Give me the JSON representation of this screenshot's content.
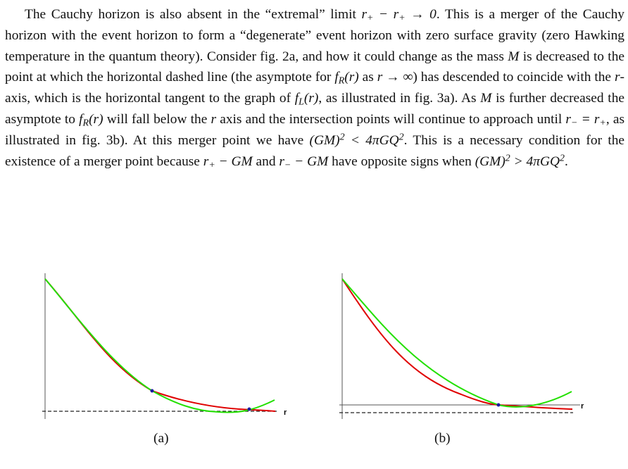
{
  "paragraph": {
    "s1": "The Cauchy horizon is also absent in the “extremal” limit ",
    "s2": ". This is a merger of the Cauchy horizon with the event horizon to form a “degenerate” event horizon with zero surface gravity (zero Hawking temperature in the quantum theory). Consider fig. 2a, and how it could change as the mass ",
    "s3": " is decreased to the point at which the horizontal dashed line (the asymptote for ",
    "s4": " as ",
    "s5": ") has descended to coincide with the ",
    "s6": "-axis, which is the horizontal tangent to the graph of ",
    "s7": ", as illustrated in fig. 3a). As ",
    "s8": " is further decreased the asymptote to ",
    "s9": " will fall below the ",
    "s10": " axis and the intersection points will continue to approach until ",
    "s11": ", as illustrated in fig. 3b). At this merger point we have ",
    "s12": ". This is a necessary condition for the existence of a merger point because ",
    "s13": " and ",
    "s14": " have opposite signs when ",
    "s15": "."
  },
  "math": {
    "extremal_limit": "r₊ − r₊ → 0",
    "mass": "M",
    "fR": "f_R(r)",
    "r_to_inf": "r → ∞",
    "r": "r",
    "fL": "f_L(r)",
    "merge": "r₋ = r₊",
    "cond_lt": "(GM)² < 4πGQ²",
    "rplus_gm": "r₊ − GM",
    "rminus_gm": "r₋ − GM",
    "cond_gt": "(GM)² > 4πGQ²"
  },
  "figures": {
    "a": {
      "caption": "(a)",
      "axis_label": "r"
    },
    "b": {
      "caption": "(b)",
      "axis_label": "r"
    }
  },
  "colors": {
    "fR_curve": "#e00000",
    "fL_curve": "#22e000",
    "intersection": "#1a1aa0",
    "axis": "#555555",
    "dashed": "#222222"
  }
}
